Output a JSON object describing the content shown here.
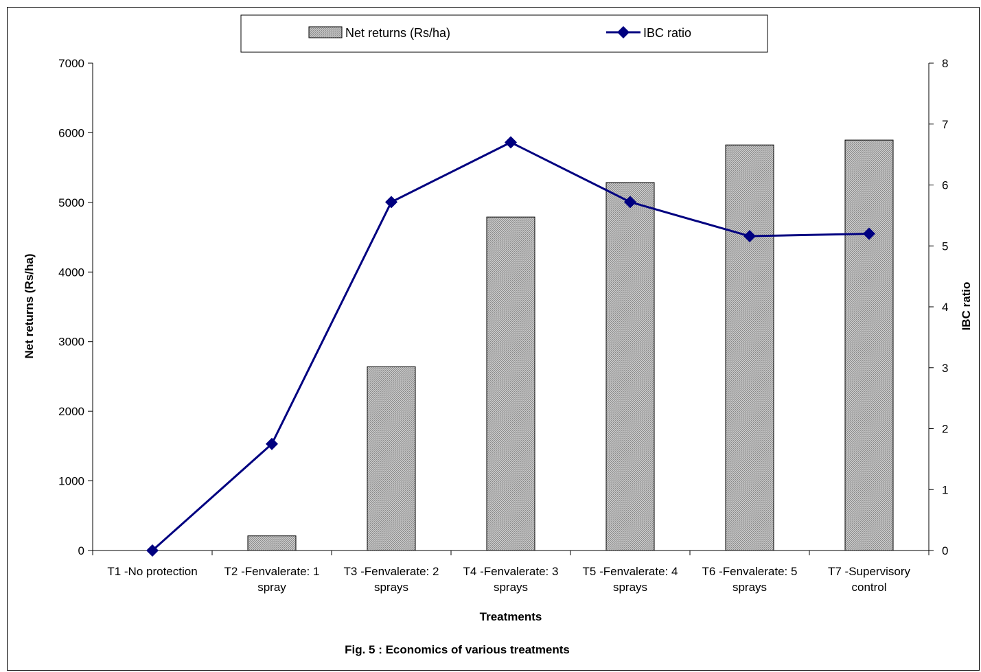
{
  "chart_data": {
    "type": "bar",
    "caption": "Fig. 5 : Economics of various treatments",
    "xlabel": "Treatments",
    "ylabel": "Net returns (Rs/ha)",
    "y2label": "IBC ratio",
    "categories": [
      [
        "T1 -No protection"
      ],
      [
        "T2 -Fenvalerate: 1",
        "spray"
      ],
      [
        "T3 -Fenvalerate: 2",
        "sprays"
      ],
      [
        "T4 -Fenvalerate: 3",
        "sprays"
      ],
      [
        "T5 -Fenvalerate: 4",
        "sprays"
      ],
      [
        "T6 -Fenvalerate: 5",
        "sprays"
      ],
      [
        "T7 -Supervisory",
        "control"
      ]
    ],
    "series": [
      {
        "name": "Net returns (Rs/ha)",
        "type": "bar",
        "axis": "left",
        "values": [
          0,
          210,
          2640,
          4790,
          5285,
          5825,
          5895
        ]
      },
      {
        "name": "IBC ratio",
        "type": "line",
        "axis": "right",
        "values": [
          0,
          1.75,
          5.72,
          6.7,
          5.72,
          5.16,
          5.2
        ]
      }
    ],
    "ylim": [
      0,
      7000
    ],
    "yticks": [
      0,
      1000,
      2000,
      3000,
      4000,
      5000,
      6000,
      7000
    ],
    "y2lim": [
      0,
      8
    ],
    "y2ticks": [
      0,
      1,
      2,
      3,
      4,
      5,
      6,
      7,
      8
    ],
    "grid": false,
    "legend": "top-center",
    "colors": {
      "line": "#000080",
      "bar_fill": "#c8c8c8",
      "bar_hatch": "#808080"
    }
  }
}
